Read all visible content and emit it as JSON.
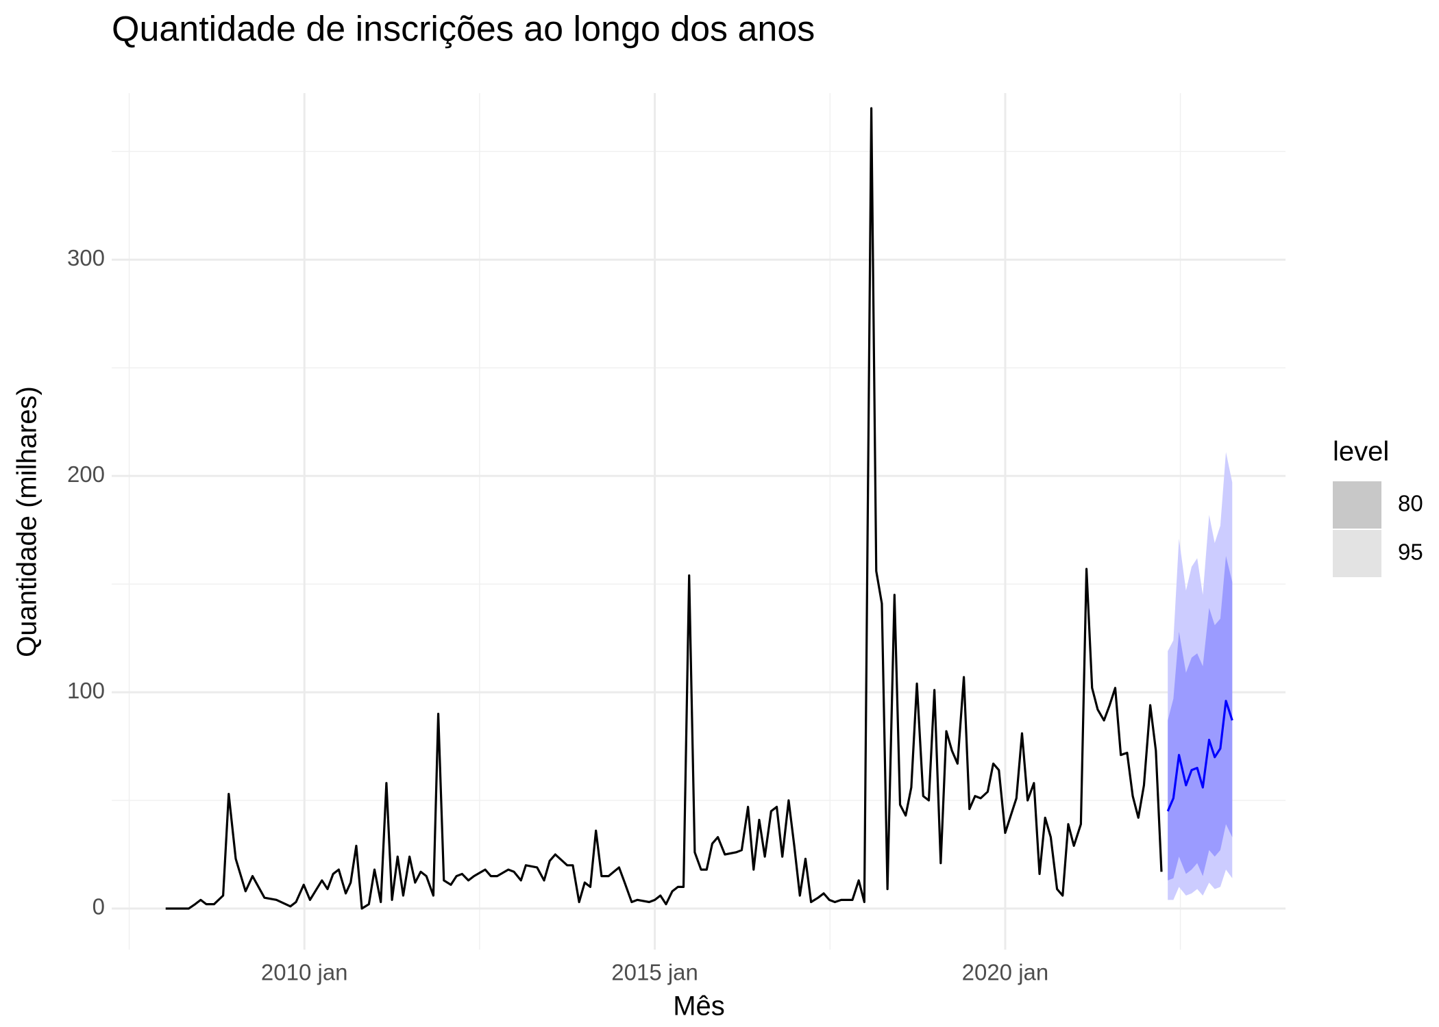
{
  "chart_data": {
    "type": "forecast",
    "title": "Quantidade de inscrições ao longo dos anos",
    "x_label": "Mês",
    "y_label": "Quantidade (milhares)",
    "xlim": [
      2007.25,
      2024.0
    ],
    "xticks": [
      {
        "value": 2010,
        "label": "2010 jan"
      },
      {
        "value": 2015,
        "label": "2015 jan"
      },
      {
        "value": 2020,
        "label": "2020 jan"
      }
    ],
    "xminor": [
      2007.5,
      2012.5,
      2017.5,
      2022.5
    ],
    "ylim": [
      -19,
      377
    ],
    "yticks": [
      0,
      100,
      200,
      300
    ],
    "yminor": [
      50,
      150,
      250,
      350
    ],
    "grid": true,
    "color": "#000000",
    "x": [
      2008.02,
      2008.35,
      2008.44,
      2008.52,
      2008.6,
      2008.71,
      2008.84,
      2008.92,
      2009.02,
      2009.16,
      2009.26,
      2009.43,
      2009.6,
      2009.8,
      2009.88,
      2009.99,
      2010.08,
      2010.25,
      2010.33,
      2010.41,
      2010.49,
      2010.59,
      2010.66,
      2010.74,
      2010.82,
      2010.92,
      2011.0,
      2011.09,
      2011.17,
      2011.25,
      2011.33,
      2011.41,
      2011.5,
      2011.58,
      2011.66,
      2011.74,
      2011.84,
      2011.91,
      2011.99,
      2012.09,
      2012.17,
      2012.25,
      2012.34,
      2012.42,
      2012.58,
      2012.66,
      2012.75,
      2012.91,
      2012.99,
      2013.09,
      2013.16,
      2013.32,
      2013.42,
      2013.5,
      2013.58,
      2013.75,
      2013.83,
      2013.92,
      2014.0,
      2014.08,
      2014.16,
      2014.24,
      2014.34,
      2014.49,
      2014.57,
      2014.67,
      2014.75,
      2014.92,
      2015.0,
      2015.08,
      2015.16,
      2015.25,
      2015.33,
      2015.41,
      2015.49,
      2015.57,
      2015.66,
      2015.74,
      2015.82,
      2015.9,
      2016.0,
      2016.16,
      2016.24,
      2016.33,
      2016.41,
      2016.49,
      2016.57,
      2016.66,
      2016.74,
      2016.82,
      2016.91,
      2016.99,
      2017.07,
      2017.15,
      2017.23,
      2017.33,
      2017.41,
      2017.49,
      2017.57,
      2017.66,
      2017.82,
      2017.91,
      2017.99,
      2018.09,
      2018.16,
      2018.24,
      2018.32,
      2018.42,
      2018.5,
      2018.58,
      2018.66,
      2018.74,
      2018.83,
      2018.91,
      2018.99,
      2019.08,
      2019.16,
      2019.24,
      2019.32,
      2019.41,
      2019.49,
      2019.57,
      2019.65,
      2019.75,
      2019.83,
      2019.91,
      2020.0,
      2020.08,
      2020.16,
      2020.24,
      2020.32,
      2020.41,
      2020.49,
      2020.57,
      2020.65,
      2020.74,
      2020.82,
      2020.9,
      2020.98,
      2021.08,
      2021.16,
      2021.24,
      2021.32,
      2021.41,
      2021.49,
      2021.57,
      2021.65,
      2021.74,
      2021.82,
      2021.9,
      2021.98,
      2022.07,
      2022.15,
      2022.23
    ],
    "values": [
      0,
      0,
      2,
      4,
      2,
      2,
      6,
      53,
      23,
      8,
      15,
      5,
      4,
      1,
      3,
      11,
      4,
      13,
      9,
      16,
      18,
      7,
      12,
      29,
      0,
      2,
      18,
      3,
      58,
      4,
      24,
      6,
      24,
      12,
      17,
      15,
      6,
      90,
      13,
      11,
      15,
      16,
      13,
      15,
      18,
      15,
      15,
      18,
      17,
      13,
      20,
      19,
      13,
      22,
      25,
      20,
      20,
      3,
      12,
      10,
      36,
      15,
      15,
      19,
      12,
      3,
      4,
      3,
      4,
      6,
      2,
      8,
      10,
      10,
      154,
      26,
      18,
      18,
      30,
      33,
      25,
      26,
      27,
      47,
      18,
      41,
      24,
      45,
      47,
      24,
      50,
      29,
      6,
      23,
      3,
      5,
      7,
      4,
      3,
      4,
      4,
      13,
      3,
      370,
      156,
      141,
      9,
      145,
      48,
      43,
      56,
      104,
      52,
      50,
      101,
      21,
      82,
      73,
      67,
      107,
      46,
      52,
      51,
      54,
      67,
      64,
      35,
      43,
      51,
      81,
      50,
      58,
      16,
      42,
      33,
      9,
      6,
      39,
      29,
      39,
      157,
      102,
      92,
      87,
      94,
      102,
      71,
      72,
      52,
      42,
      57,
      94,
      73,
      17
    ],
    "forecast": {
      "color": "#0000ff",
      "x": [
        2022.32,
        2022.4,
        2022.48,
        2022.58,
        2022.66,
        2022.74,
        2022.82,
        2022.91,
        2022.99,
        2023.07,
        2023.15,
        2023.24
      ],
      "values": [
        45,
        51,
        71,
        57,
        64,
        65,
        56,
        78,
        70,
        74,
        96,
        87
      ]
    },
    "legend_title": "level",
    "intervals": [
      {
        "level": 95,
        "color": "#ccccff",
        "legend_color": "#e3e3e3",
        "lower": [
          4,
          4,
          10,
          6,
          7,
          9,
          6,
          12,
          9,
          10,
          18,
          14
        ],
        "upper": [
          119,
          124,
          171,
          147,
          158,
          162,
          145,
          182,
          169,
          177,
          211,
          197
        ]
      },
      {
        "level": 80,
        "color": "#9b9bff",
        "legend_color": "#c8c8c8",
        "lower": [
          13,
          14,
          24,
          16,
          18,
          21,
          15,
          27,
          24,
          27,
          39,
          33
        ],
        "upper": [
          87,
          97,
          128,
          109,
          116,
          118,
          112,
          139,
          131,
          134,
          163,
          151
        ]
      }
    ]
  }
}
